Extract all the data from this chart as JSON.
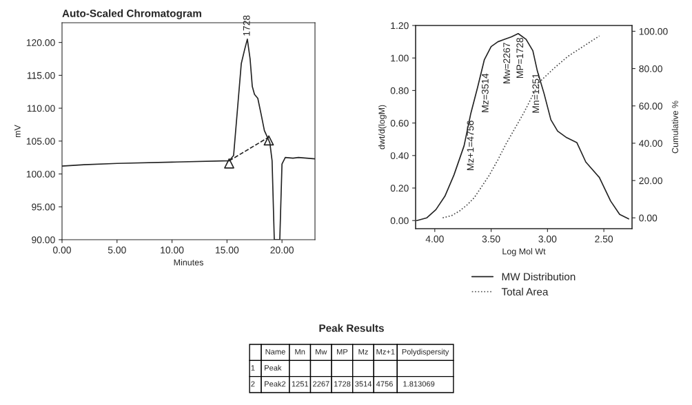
{
  "chart_data": [
    {
      "type": "line",
      "title": "Auto-Scaled Chromatogram",
      "xlabel": "Minutes",
      "ylabel": "mV",
      "xlim": [
        0,
        23
      ],
      "ylim": [
        90,
        123
      ],
      "xticks": [
        {
          "value": 0,
          "label": "0.00"
        },
        {
          "value": 5,
          "label": "5.00"
        },
        {
          "value": 10,
          "label": "10.00"
        },
        {
          "value": 15,
          "label": "15.00"
        },
        {
          "value": 20,
          "label": "20.00"
        }
      ],
      "yticks": [
        {
          "value": 90,
          "label": "90.00"
        },
        {
          "value": 95,
          "label": "95.00"
        },
        {
          "value": 100,
          "label": "100.00"
        },
        {
          "value": 105,
          "label": "105.00"
        },
        {
          "value": 110,
          "label": "110.00"
        },
        {
          "value": 115,
          "label": "115.00"
        },
        {
          "value": 120,
          "label": "120.00"
        }
      ],
      "grid": false,
      "legend": false,
      "series": [
        {
          "color": "#222222",
          "x": [
            0,
            2,
            5,
            10,
            15.2,
            15.6,
            16.0,
            16.3,
            16.6,
            16.85,
            17.1,
            17.3,
            17.5,
            17.8,
            18.1,
            18.4,
            18.7,
            18.9,
            19.1,
            19.3,
            19.8,
            20.0,
            20.3,
            21.0,
            21.5,
            23.0
          ],
          "values": [
            101.2,
            101.4,
            101.6,
            101.8,
            102.0,
            102.8,
            110.8,
            116.8,
            118.9,
            120.5,
            117.5,
            113.3,
            112.1,
            111.5,
            109.1,
            106.6,
            105.5,
            104.7,
            102.0,
            90,
            90,
            101.5,
            102.5,
            102.4,
            102.5,
            102.3
          ]
        },
        {
          "color": "#222222",
          "line_style": "dashed",
          "x": [
            15.2,
            18.8
          ],
          "values": [
            102.0,
            105.6
          ]
        },
        {
          "type": "scatter",
          "color": "#222222",
          "marker": "triangle",
          "x": [
            15.2,
            18.8
          ],
          "values": [
            101.6,
            105.1
          ]
        }
      ],
      "annotations": [
        {
          "text": "1728",
          "x": 16.85,
          "y": 120.5
        }
      ]
    },
    {
      "type": "line",
      "xlabel": "Log Mol Wt",
      "ylabel": "dwt/d(logM)",
      "y2label": "Cumulative %",
      "xlim": [
        4.17,
        2.25
      ],
      "ylim": [
        -0.05,
        1.2
      ],
      "y2lim": [
        -5.8,
        103.1
      ],
      "xticks": [
        {
          "value": 4,
          "label": "4.00"
        },
        {
          "value": 3.5,
          "label": "3.50"
        },
        {
          "value": 3,
          "label": "3.00"
        },
        {
          "value": 2.5,
          "label": "2.50"
        }
      ],
      "yticks": [
        {
          "value": 0,
          "label": "0.00"
        },
        {
          "value": 0.2,
          "label": "0.20"
        },
        {
          "value": 0.4,
          "label": "0.40"
        },
        {
          "value": 0.6,
          "label": "0.60"
        },
        {
          "value": 0.8,
          "label": "0.80"
        },
        {
          "value": 1.0,
          "label": "1.00"
        },
        {
          "value": 1.2,
          "label": "1.20"
        }
      ],
      "y2ticks": [
        {
          "value": 0,
          "label": "0.00"
        },
        {
          "value": 20,
          "label": "20.00"
        },
        {
          "value": 40,
          "label": "40.00"
        },
        {
          "value": 60,
          "label": "60.00"
        },
        {
          "value": 80,
          "label": "80.00"
        },
        {
          "value": 100,
          "label": "100.00"
        }
      ],
      "grid": false,
      "legend": "bottom",
      "series": [
        {
          "name": "MW Distribution",
          "color": "#222222",
          "line_style": "solid",
          "x": [
            4.16,
            4.07,
            3.99,
            3.91,
            3.83,
            3.74,
            3.68,
            3.62,
            3.56,
            3.5,
            3.44,
            3.38,
            3.32,
            3.26,
            3.19,
            3.13,
            3.09,
            3.03,
            2.97,
            2.91,
            2.83,
            2.74,
            2.66,
            2.54,
            2.44,
            2.36,
            2.28
          ],
          "values": [
            0.0,
            0.017,
            0.067,
            0.15,
            0.28,
            0.46,
            0.66,
            0.82,
            0.99,
            1.07,
            1.1,
            1.115,
            1.13,
            1.15,
            1.115,
            1.045,
            0.92,
            0.78,
            0.62,
            0.55,
            0.51,
            0.48,
            0.36,
            0.265,
            0.12,
            0.038,
            0.01
          ]
        },
        {
          "name": "Total Area",
          "color": "#444444",
          "line_style": "dotted",
          "axis": "y2",
          "x": [
            3.93,
            3.85,
            3.78,
            3.71,
            3.65,
            3.52,
            3.44,
            3.37,
            3.21,
            3.07,
            2.94,
            2.82,
            2.54
          ],
          "values": [
            0,
            1.2,
            3.7,
            7.1,
            10.8,
            22.5,
            31.1,
            39.4,
            56.3,
            72.9,
            80.3,
            86.5,
            97.5
          ]
        }
      ],
      "annotations": [
        {
          "text": "Mz+1=4756",
          "x": 3.677,
          "y": 0.64
        },
        {
          "text": "Mz=3514",
          "x": 3.546,
          "y": 0.93
        },
        {
          "text": "Mw=2267",
          "x": 3.355,
          "y": 1.12
        },
        {
          "text": "MP=1728",
          "x": 3.238,
          "y": 1.15
        },
        {
          "text": "Mn=1251",
          "x": 3.097,
          "y": 0.93
        }
      ]
    },
    {
      "type": "other",
      "title": "Peak Results",
      "categories": [
        null,
        "Name",
        "Mn",
        "Mw",
        "MP",
        "Mz",
        "Mz+1",
        "Polydispersity"
      ],
      "cell_labels": [
        [
          "1",
          "Peak",
          null,
          null,
          null,
          null,
          null,
          null
        ],
        [
          "2",
          "Peak2",
          "1251",
          "2267",
          "1728",
          "3514",
          "4756",
          "1.813069"
        ]
      ]
    }
  ]
}
